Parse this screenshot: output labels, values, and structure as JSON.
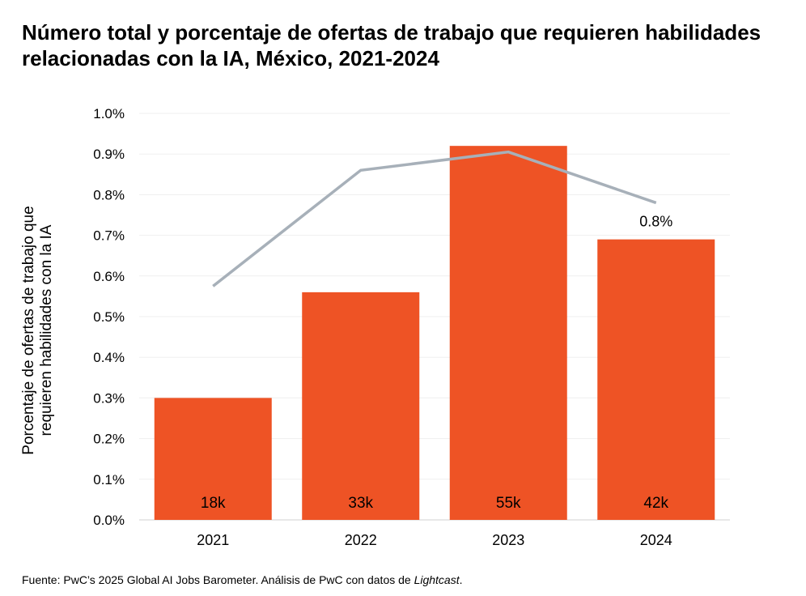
{
  "chart_data": {
    "type": "bar",
    "title": "Número total y porcentaje de ofertas de trabajo que requieren habilidades relacionadas con la IA, México, 2021-2024",
    "ylabel": "Porcentaje de ofertas de trabajo que requieren habilidades con la IA",
    "xlabel": "",
    "categories": [
      "2021",
      "2022",
      "2023",
      "2024"
    ],
    "ylim": [
      0,
      1.0
    ],
    "yticks": [
      "0.0%",
      "0.1%",
      "0.2%",
      "0.3%",
      "0.4%",
      "0.5%",
      "0.6%",
      "0.7%",
      "0.8%",
      "0.9%",
      "1.0%"
    ],
    "grid": true,
    "series": [
      {
        "type": "bar",
        "values": [
          0.3,
          0.56,
          0.92,
          0.69
        ],
        "data_labels": [
          "18k",
          "33k",
          "55k",
          "42k"
        ],
        "color": "#EE5325"
      },
      {
        "type": "line",
        "values": [
          0.575,
          0.86,
          0.905,
          0.78
        ],
        "data_labels": [
          "",
          "",
          "",
          "0.8%"
        ],
        "color": "#A7B0B9"
      }
    ],
    "source": {
      "prefix": "Fuente:",
      "text": "PwC’s 2025 Global AI Jobs Barometer. Análisis de PwC con datos de",
      "italic": "Lightcast",
      "suffix": "."
    }
  }
}
